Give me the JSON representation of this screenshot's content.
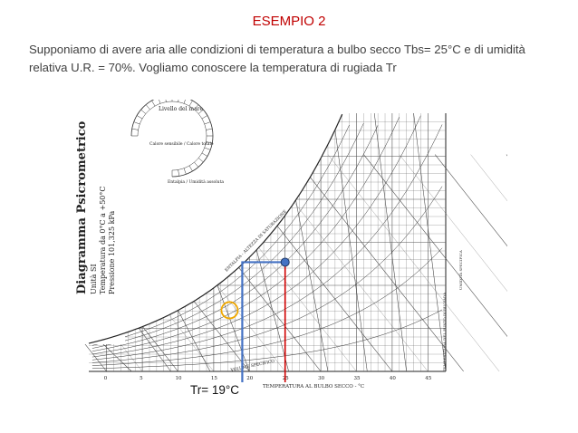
{
  "slide": {
    "title": "ESEMPIO 2",
    "text": "Supponiamo di avere aria alle condizioni di temperatura a bulbo secco Tbs= 25°C e di umidità relativa U.R. = 70%. Vogliamo conoscere la temperatura di rugiada Tr",
    "result_label": "Tr= 19°C"
  },
  "chart": {
    "side_title": "Diagramma Psicrometrico",
    "side_lines": [
      "Unità SI",
      "Temperatura da 0°C a +50°C",
      "Pressione 101,325 kPa"
    ],
    "protractor_title": "Livello del mare",
    "protractor_left_label": "Calore sensibile / Calore totale",
    "protractor_bottom_label": "Entalpia / Umidità assoluta",
    "x_axis_label": "TEMPERATURA AL BULBO SECCO - °C",
    "x_ticks": [
      "0",
      "5",
      "10",
      "15",
      "20",
      "25",
      "30",
      "35",
      "40",
      "45"
    ],
    "saturation_label": "TEMPERATURA DEL PUNTO DI RUGIADA",
    "specific_volume_label": "VOLUME SPECIFICO",
    "enthalpy_label": "ENTALPIA - ALTEZZA DI SATURAZIONE",
    "right_axis_label": "UMIDITÀ SPECIFICA",
    "state_point": {
      "dry_bulb_c": 25,
      "relative_humidity_pct": 70,
      "dew_point_c": 19
    },
    "colors": {
      "dry_bulb_line": "#d00000",
      "dew_path": "#4472c4",
      "state_point": "#4472c4",
      "highlight_circle": "#f0a800"
    }
  }
}
